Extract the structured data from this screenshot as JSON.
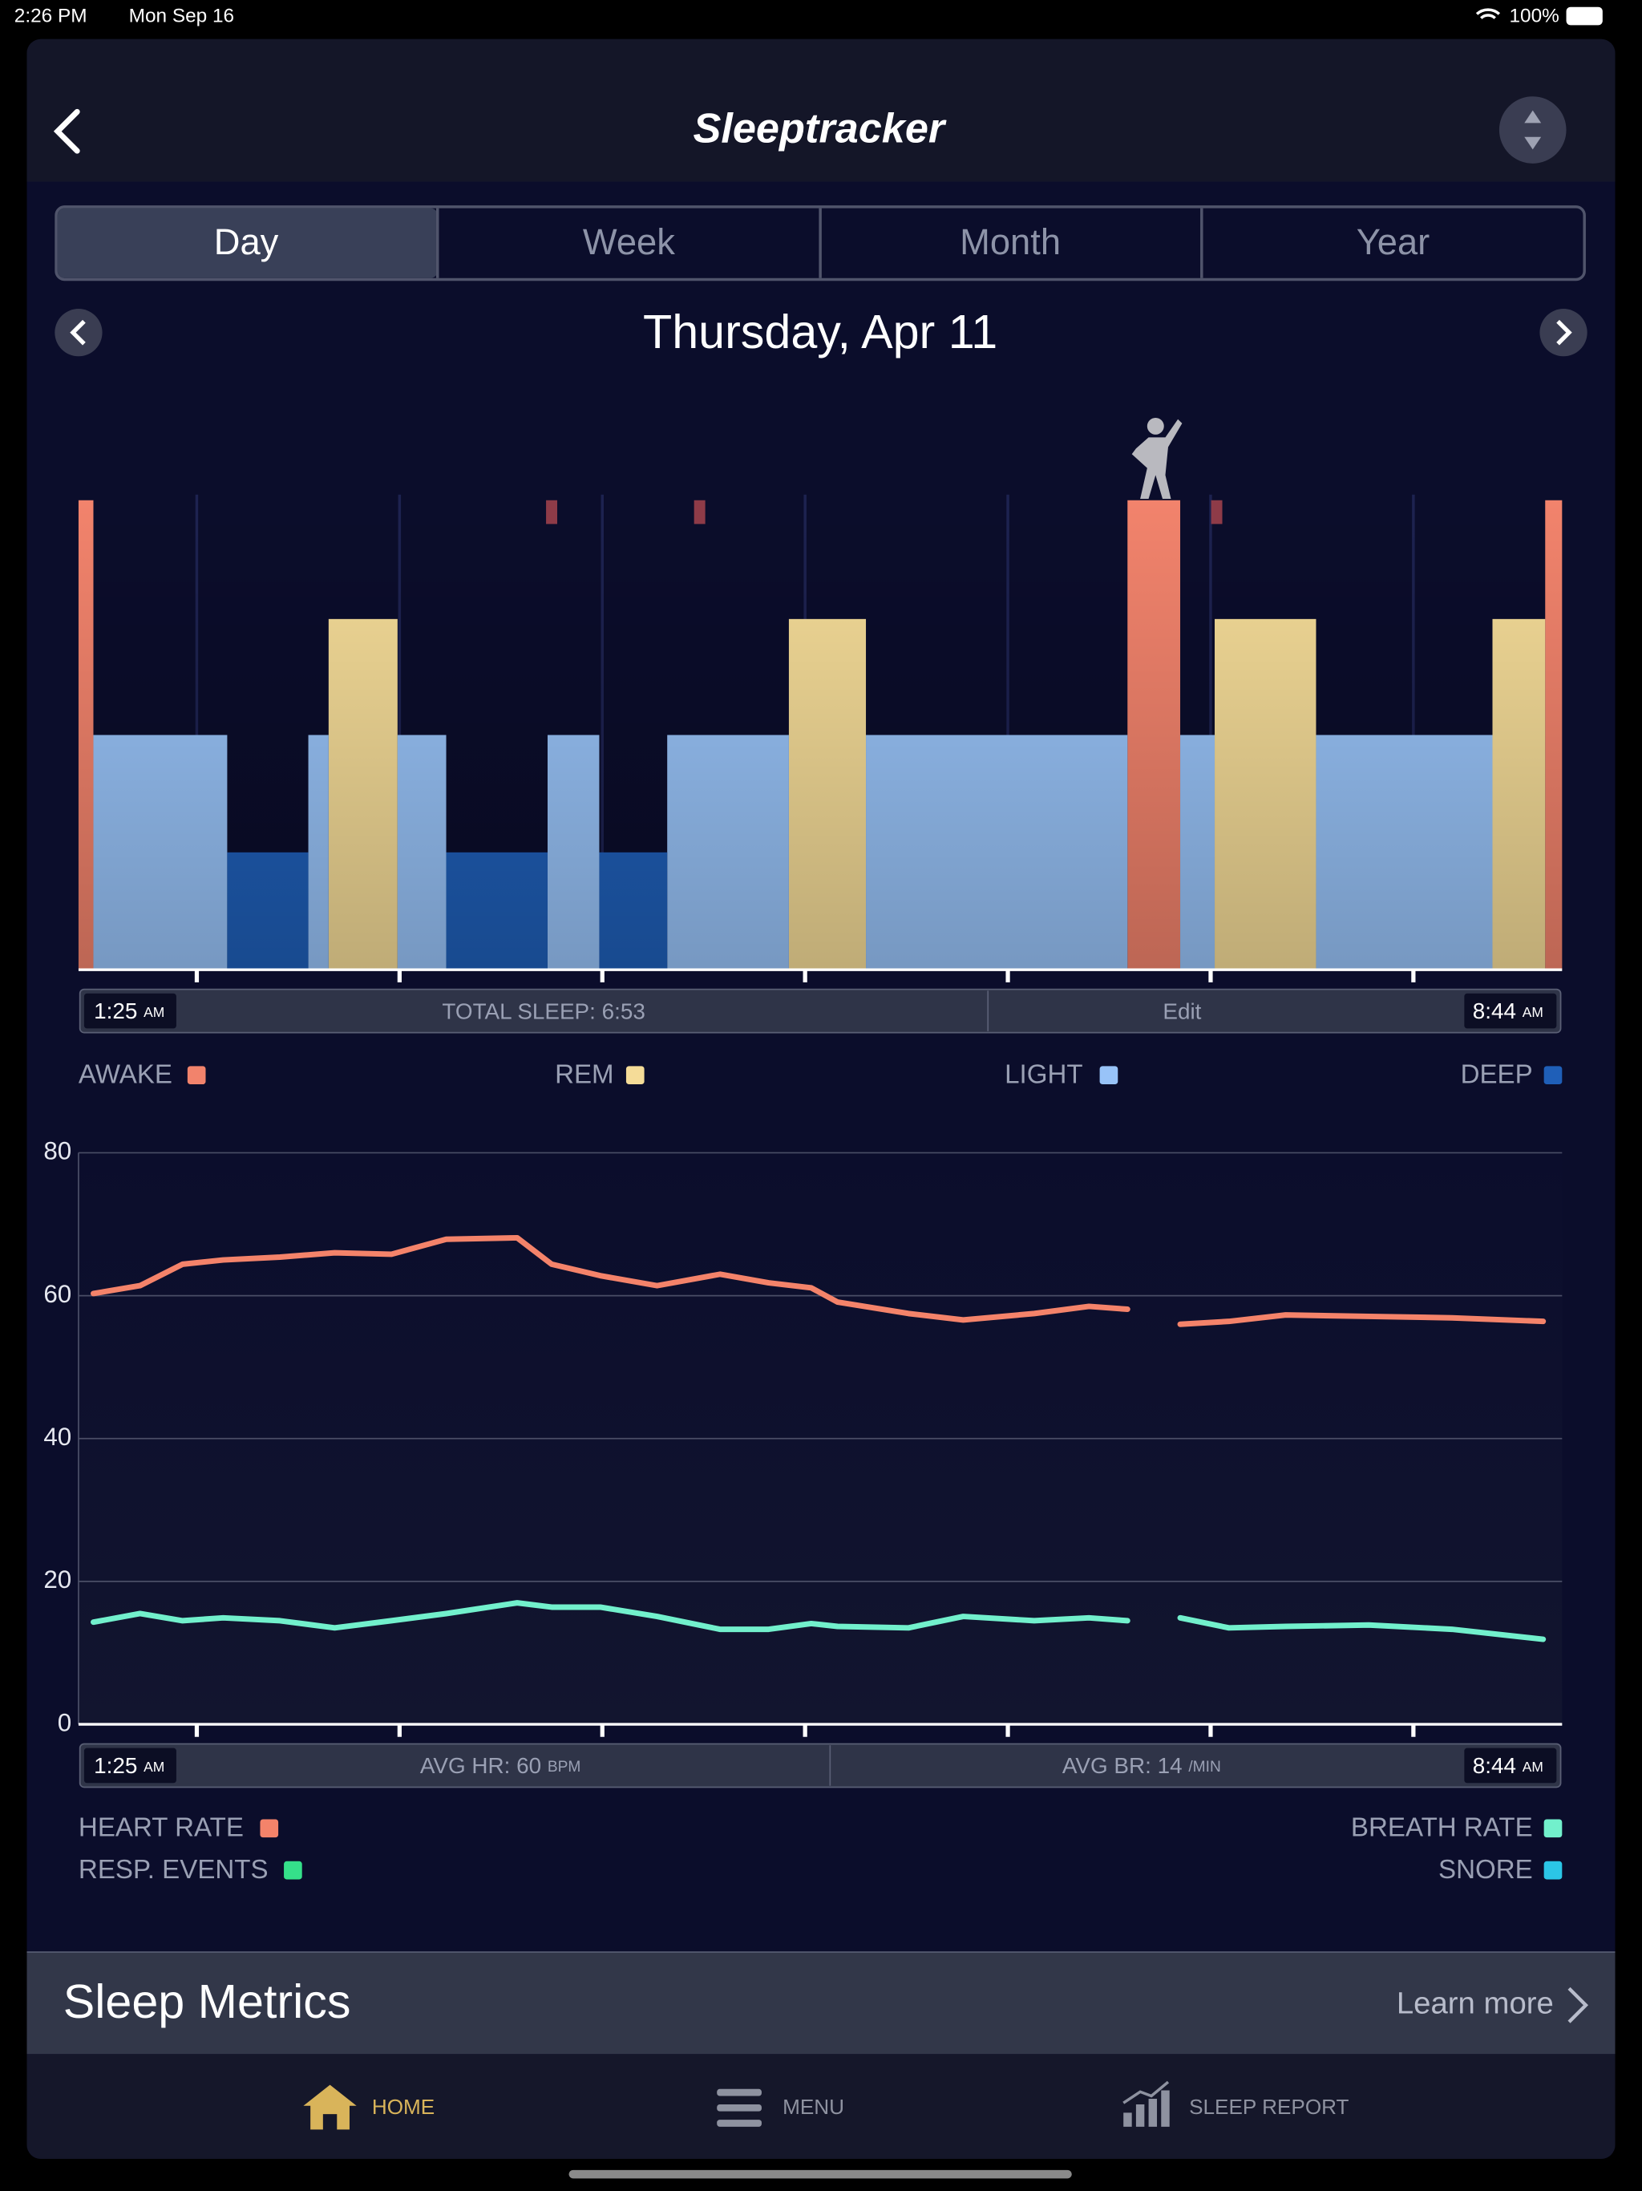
{
  "status_bar": {
    "time": "2:26 PM",
    "date": "Mon Sep 16",
    "battery": "100%"
  },
  "header": {
    "title": "Sleeptracker"
  },
  "tabs": [
    "Day",
    "Week",
    "Month",
    "Year"
  ],
  "date": "Thursday, Apr 11",
  "chart_data": [
    {
      "type": "hypnogram",
      "xlim": [
        1.4167,
        8.7333
      ],
      "xticks": [
        2,
        3,
        4,
        5,
        6,
        7,
        8
      ],
      "grid": true,
      "series": [
        {
          "name": "AWAKE",
          "color": "#f2836c",
          "segments": [
            [
              1.4167,
              1.49
            ],
            [
              6.59,
              6.85
            ],
            [
              8.65,
              8.7333
            ]
          ]
        },
        {
          "name": "REM",
          "color": "#f5dc98",
          "segments": [
            [
              2.65,
              2.99
            ],
            [
              4.92,
              5.3
            ],
            [
              7.02,
              7.52
            ],
            [
              8.39,
              8.65
            ]
          ]
        },
        {
          "name": "LIGHT",
          "color": "#98c3f8",
          "segments": [
            [
              1.49,
              2.15
            ],
            [
              2.55,
              2.65
            ],
            [
              2.99,
              3.23
            ],
            [
              3.73,
              3.985
            ],
            [
              4.32,
              4.92
            ],
            [
              5.3,
              6.59
            ],
            [
              6.85,
              7.02
            ],
            [
              7.52,
              8.39
            ]
          ]
        },
        {
          "name": "DEEP",
          "color": "#1f5fb8",
          "segments": [
            [
              2.15,
              2.55
            ],
            [
              3.23,
              3.73
            ],
            [
              3.985,
              4.32
            ]
          ]
        }
      ],
      "events": [
        3.75,
        4.48,
        7.03
      ],
      "event_color": "#8e3b48",
      "footer": {
        "start": "1:25",
        "start_period": "AM",
        "total": "TOTAL SLEEP: 6:53",
        "edit": "Edit",
        "end": "8:44",
        "end_period": "AM"
      }
    },
    {
      "type": "line",
      "xlim": [
        1.4167,
        8.7333
      ],
      "xticks": [
        2,
        3,
        4,
        5,
        6,
        7,
        8
      ],
      "ylim": [
        0,
        80
      ],
      "yticks": [
        0,
        20,
        40,
        60,
        80
      ],
      "grid": true,
      "x": [
        1.49,
        1.72,
        1.93,
        2.13,
        2.41,
        2.68,
        2.96,
        3.23,
        3.58,
        3.75,
        3.99,
        4.27,
        4.58,
        4.82,
        5.03,
        5.16,
        5.51,
        5.78,
        6.13,
        6.4,
        6.59,
        6.72,
        6.85,
        7.09,
        7.37,
        7.78,
        8.19,
        8.64
      ],
      "series": [
        {
          "name": "HEART RATE",
          "color": "#f4836a",
          "values": [
            60.3,
            61.4,
            64.4,
            65,
            65.4,
            66,
            65.8,
            67.9,
            68.1,
            64.4,
            62.8,
            61.4,
            63,
            61.8,
            61.1,
            59.1,
            57.5,
            56.6,
            57.5,
            58.5,
            58.1,
            null,
            56,
            56.4,
            57.3,
            57.1,
            56.9,
            56.4
          ]
        },
        {
          "name": "BREATH RATE",
          "color": "#72f0cc",
          "values": [
            14.3,
            15.5,
            14.5,
            14.9,
            14.5,
            13.5,
            14.5,
            15.5,
            17,
            16.4,
            16.4,
            15.1,
            13.3,
            13.3,
            14.1,
            13.7,
            13.5,
            15.1,
            14.5,
            14.9,
            14.5,
            null,
            14.9,
            13.5,
            13.7,
            13.9,
            13.3,
            11.9
          ]
        }
      ],
      "legend_extra": [
        {
          "name": "RESP. EVENTS",
          "color": "#35e08a"
        },
        {
          "name": "SNORE",
          "color": "#2bc6e6"
        }
      ],
      "footer": {
        "start": "1:25",
        "start_period": "AM",
        "hr": "AVG HR: 60",
        "hr_unit": "BPM",
        "br": "AVG BR: 14",
        "br_unit": "/MIN",
        "end": "8:44",
        "end_period": "AM"
      }
    }
  ],
  "sleep_metrics": {
    "title": "Sleep Metrics",
    "link": "Learn more"
  },
  "nav": [
    "HOME",
    "MENU",
    "SLEEP REPORT"
  ]
}
